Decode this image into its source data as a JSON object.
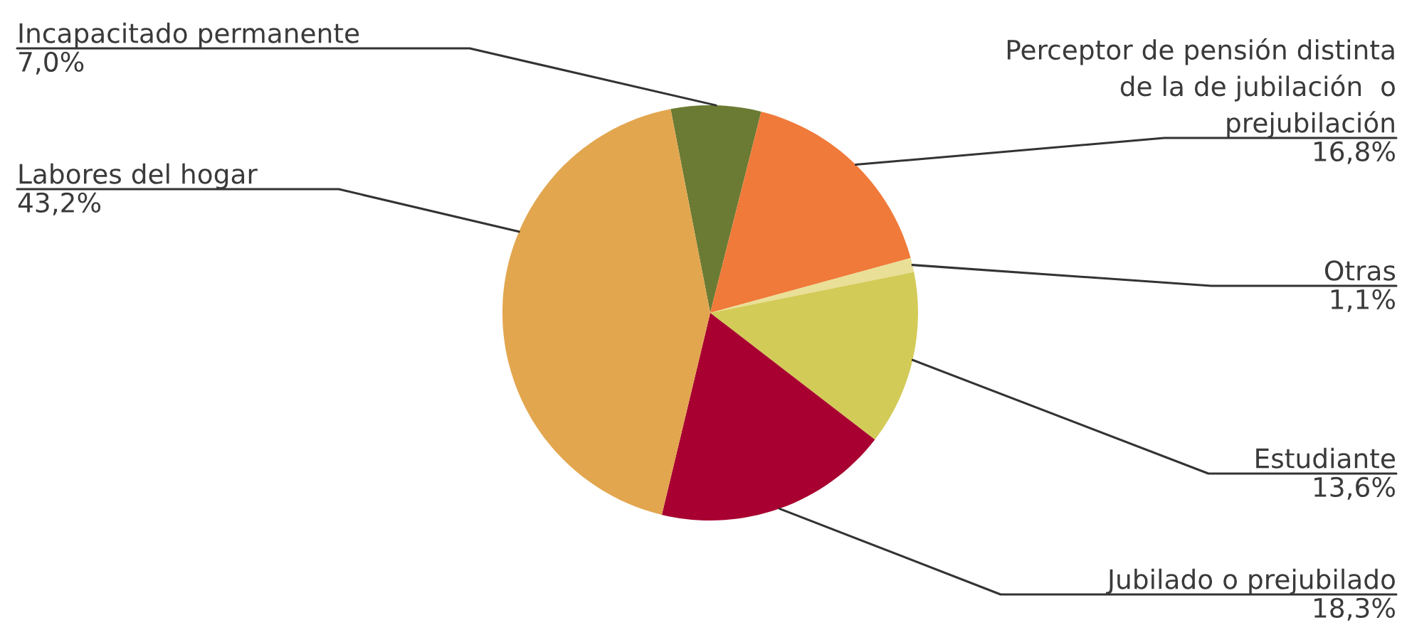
{
  "chart_data": {
    "type": "pie",
    "categories": [
      "Incapacitado permanente",
      "Perceptor de pensión distinta\nde la de jubilación  o\nprejubilación",
      "Otras",
      "Estudiante",
      "Jubilado o prejubilado",
      "Labores del hogar"
    ],
    "values": [
      7.0,
      16.8,
      1.1,
      13.6,
      18.3,
      43.2
    ],
    "colors": [
      "#6b7b33",
      "#f07a3a",
      "#e9df96",
      "#d3cb57",
      "#a80030",
      "#e2a64f"
    ],
    "value_labels": [
      "7,0%",
      "16,8%",
      "1,1%",
      "13,6%",
      "18,3%",
      "43,2%"
    ]
  }
}
